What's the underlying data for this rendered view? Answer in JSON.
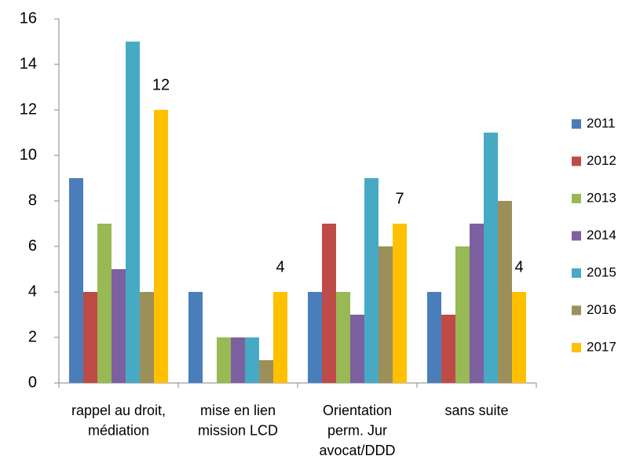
{
  "chart_data": {
    "type": "bar",
    "categories": [
      "rappel au droit, médiation",
      "mise en lien mission LCD",
      "Orientation perm. Jur avocat/DDD",
      "sans suite"
    ],
    "series": [
      {
        "name": "2011",
        "color": "#4a7ebb",
        "values": [
          9,
          4,
          4,
          4
        ]
      },
      {
        "name": "2012",
        "color": "#be4b48",
        "values": [
          4,
          0,
          7,
          3
        ]
      },
      {
        "name": "2013",
        "color": "#98b954",
        "values": [
          7,
          2,
          4,
          6
        ]
      },
      {
        "name": "2014",
        "color": "#7d60a0",
        "values": [
          5,
          2,
          3,
          7
        ]
      },
      {
        "name": "2015",
        "color": "#46aac5",
        "values": [
          15,
          2,
          9,
          11
        ]
      },
      {
        "name": "2016",
        "color": "#9c8f5a",
        "values": [
          4,
          1,
          6,
          8
        ]
      },
      {
        "name": "2017",
        "color": "#ffc000",
        "values": [
          12,
          4,
          7,
          4
        ],
        "data_labels": true
      }
    ],
    "ylim": [
      0,
      16
    ],
    "yticks": [
      0,
      2,
      4,
      6,
      8,
      10,
      12,
      14,
      16
    ],
    "grid": false,
    "legend": "right"
  }
}
